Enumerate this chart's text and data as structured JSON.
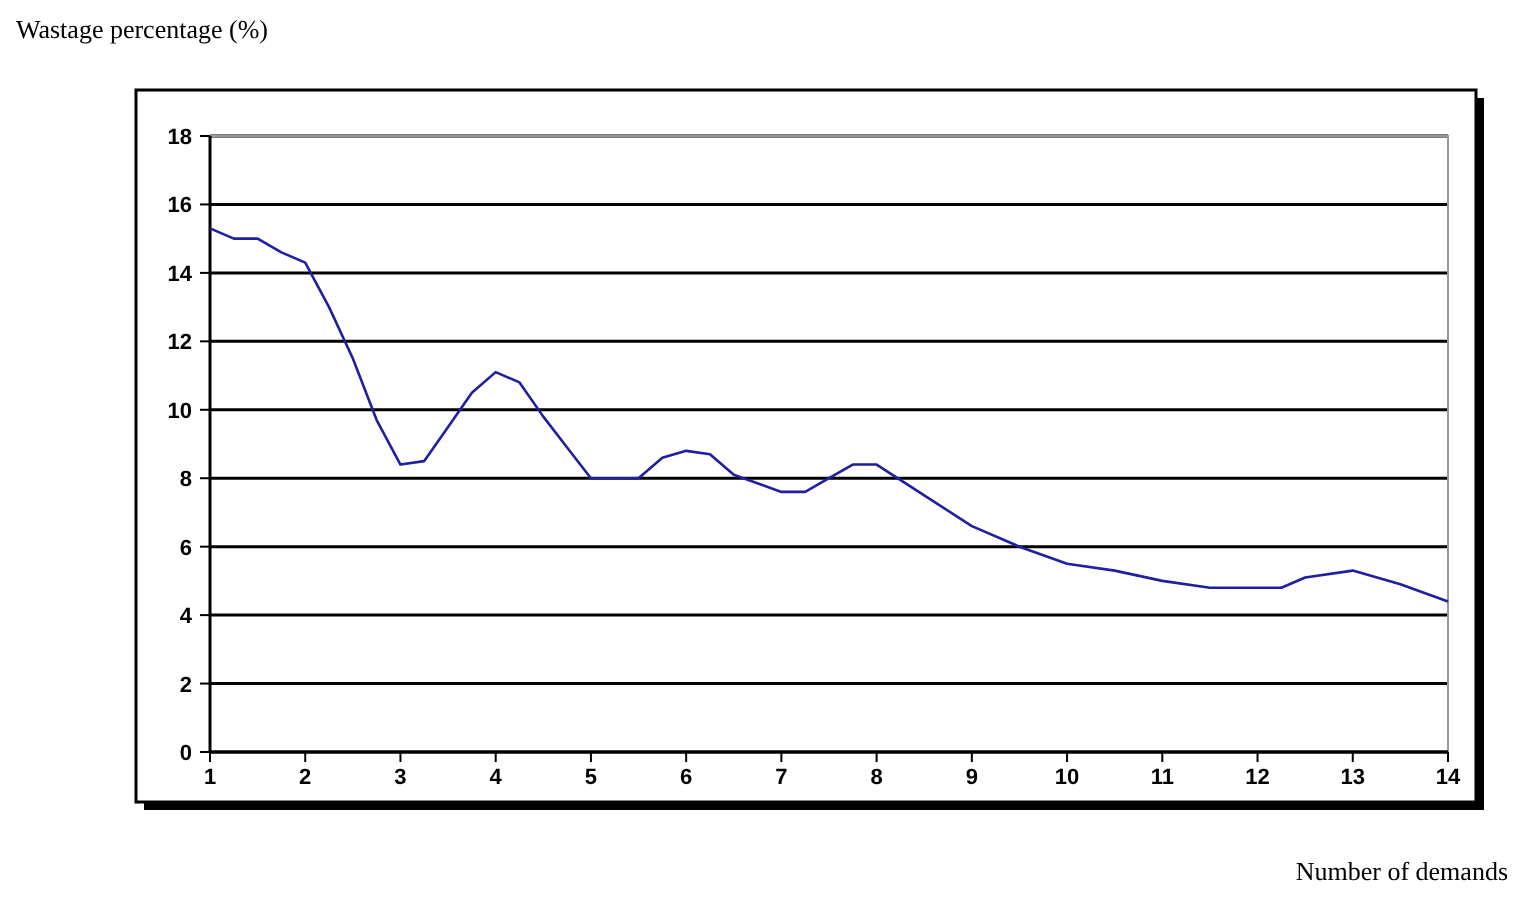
{
  "chart_data": {
    "type": "line",
    "ylabel": "Wastage percentage (%)",
    "xlabel": "Number of demands",
    "x": [
      1,
      1.25,
      1.5,
      1.75,
      2,
      2.25,
      2.5,
      2.75,
      3,
      3.25,
      3.5,
      3.75,
      4,
      4.25,
      4.5,
      4.75,
      5,
      5.5,
      5.75,
      6,
      6.25,
      6.5,
      7,
      7.25,
      7.5,
      7.75,
      8,
      8.5,
      9,
      9.5,
      10,
      10.5,
      11,
      11.5,
      12,
      12.25,
      12.5,
      13,
      13.5,
      14
    ],
    "series": [
      {
        "color": "#1f1fa0",
        "values": [
          15.3,
          15.0,
          15.0,
          14.6,
          14.3,
          13.0,
          11.5,
          9.7,
          8.4,
          8.5,
          9.5,
          10.5,
          11.1,
          10.8,
          9.8,
          8.9,
          8.0,
          8.0,
          8.6,
          8.8,
          8.7,
          8.1,
          7.6,
          7.6,
          8.0,
          8.4,
          8.4,
          7.5,
          6.6,
          6.0,
          5.5,
          5.3,
          5.0,
          4.8,
          4.8,
          4.8,
          5.1,
          5.3,
          4.9,
          4.4
        ]
      }
    ],
    "xlim": [
      1,
      14
    ],
    "xticks": [
      1,
      2,
      3,
      4,
      5,
      6,
      7,
      8,
      9,
      10,
      11,
      12,
      13,
      14
    ],
    "ylim": [
      0,
      18
    ],
    "yticks": [
      0,
      2,
      4,
      6,
      8,
      10,
      12,
      14,
      16,
      18
    ],
    "grid": "y",
    "marker": "none",
    "line_style": "solid"
  }
}
